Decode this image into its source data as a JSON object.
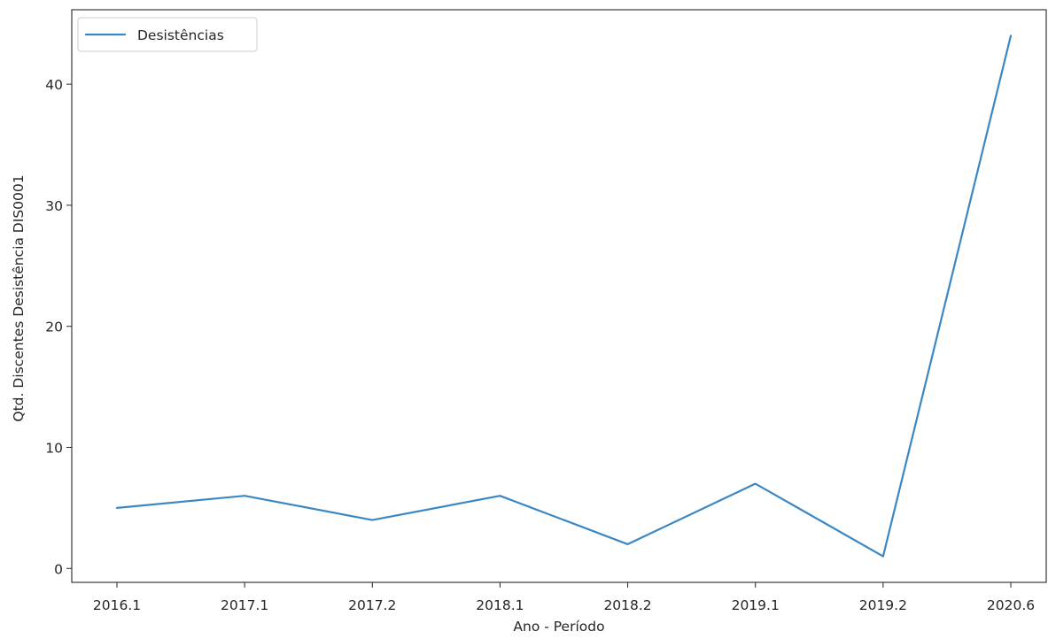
{
  "chart_data": {
    "type": "line",
    "categories": [
      "2016.1",
      "2017.1",
      "2017.2",
      "2018.1",
      "2018.2",
      "2019.1",
      "2019.2",
      "2020.6"
    ],
    "series": [
      {
        "name": "Desistências",
        "values": [
          5,
          6,
          4,
          6,
          2,
          7,
          1,
          44
        ],
        "color": "#3a87c3"
      }
    ],
    "xlabel": "Ano - Período",
    "ylabel": "Qtd. Discentes Desistência DIS0001",
    "yticks": [
      0,
      10,
      20,
      30,
      40
    ],
    "ylim": [
      -1.15,
      46.15
    ],
    "grid": false,
    "legend_position": "top-left"
  }
}
